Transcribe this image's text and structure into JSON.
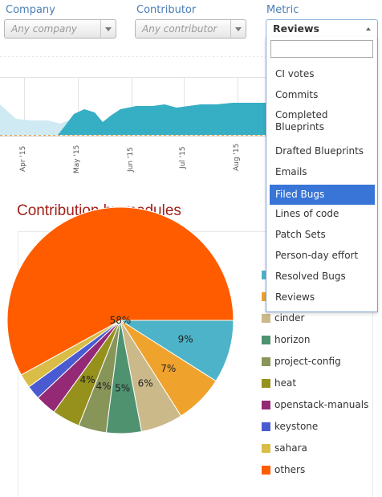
{
  "filters": {
    "company": {
      "label": "Company",
      "placeholder": "Any company"
    },
    "contributor": {
      "label": "Contributor",
      "placeholder": "Any contributor"
    },
    "metric": {
      "label": "Metric",
      "value": "Reviews",
      "search_value": "",
      "selected_option": "Filed Bugs",
      "options": [
        "CI votes",
        "Commits",
        "Completed Blueprints",
        "Drafted Blueprints",
        "Emails",
        "Filed Bugs",
        "Lines of code",
        "Patch Sets",
        "Person-day effort",
        "Resolved Bugs",
        "Reviews"
      ]
    }
  },
  "timeline": {
    "ticks": [
      "Apr '15",
      "May '15",
      "Jun '15",
      "Jul '15",
      "Aug '15"
    ]
  },
  "section": {
    "title": "Contribution by modules"
  },
  "chart_data": {
    "type": "pie",
    "slices": [
      {
        "label": "",
        "percent": 9,
        "color": "#4db3c8"
      },
      {
        "label": "",
        "percent": 7,
        "color": "#efa22c"
      },
      {
        "label": "cinder",
        "percent": 6,
        "color": "#cbb98a"
      },
      {
        "label": "horizon",
        "percent": 5,
        "color": "#4f9270"
      },
      {
        "label": "project-config",
        "percent": 4,
        "color": "#889559"
      },
      {
        "label": "heat",
        "percent": 4,
        "color": "#95911c"
      },
      {
        "label": "openstack-manuals",
        "percent": 3,
        "color": "#942a76"
      },
      {
        "label": "keystone",
        "percent": 2,
        "color": "#4a5bd2"
      },
      {
        "label": "sahara",
        "percent": 2,
        "color": "#d9bd46"
      },
      {
        "label": "others",
        "percent": 58,
        "color": "#ff5c00"
      }
    ],
    "data_labels": [
      "9%",
      "7%",
      "6%",
      "5%",
      "4%",
      "4%",
      "",
      "",
      "",
      "58%"
    ],
    "legend": {
      "placement": "right",
      "entries": [
        {
          "label": "",
          "color": "#4db3c8"
        },
        {
          "label": "",
          "color": "#efa22c"
        },
        {
          "label": "cinder",
          "color": "#cbb98a"
        },
        {
          "label": "horizon",
          "color": "#4f9270"
        },
        {
          "label": "project-config",
          "color": "#889559"
        },
        {
          "label": "heat",
          "color": "#95911c"
        },
        {
          "label": "openstack-manuals",
          "color": "#942a76"
        },
        {
          "label": "keystone",
          "color": "#4a5bd2"
        },
        {
          "label": "sahara",
          "color": "#d9bd46"
        },
        {
          "label": "others",
          "color": "#ff5c00"
        }
      ]
    }
  }
}
